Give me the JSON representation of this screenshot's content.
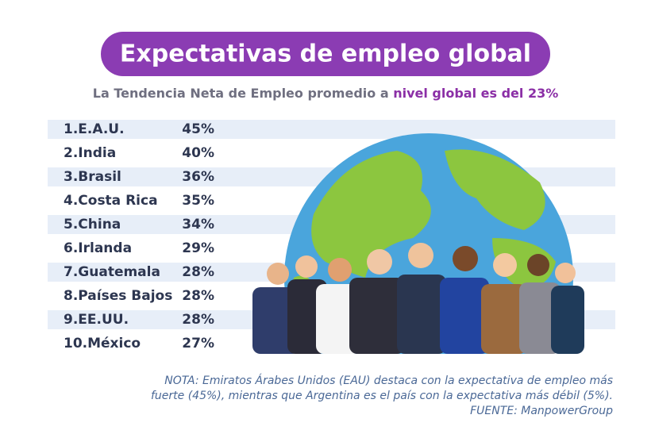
{
  "header": {
    "title": "Expectativas de empleo global",
    "subtitle": "La Tendencia Neta de Empleo promedio a ",
    "subtitle_highlight": "nivel global es del 23%"
  },
  "table": {
    "rows": [
      [
        "1.E.A.U.",
        "45%"
      ],
      [
        "2.India",
        "40%"
      ],
      [
        "3.Brasil",
        "36%"
      ],
      [
        "4.Costa Rica",
        "35%"
      ],
      [
        "5.China",
        "34%"
      ],
      [
        "6.Irlanda",
        "29%"
      ],
      [
        "7.Guatemala",
        "28%"
      ],
      [
        "8.Países Bajos",
        "28%"
      ],
      [
        "9.EE.UU.",
        "28%"
      ],
      [
        "10.México",
        "27%"
      ]
    ]
  },
  "note": {
    "lines": [
      "NOTA: Emiratos Árabes Unidos (EAU) destaca con la expectativa de empleo más",
      "fuerte (45%), mientras que Argentina es el país con la expectativa más débil (5%).",
      "FUENTE: ManpowerGroup"
    ]
  }
}
